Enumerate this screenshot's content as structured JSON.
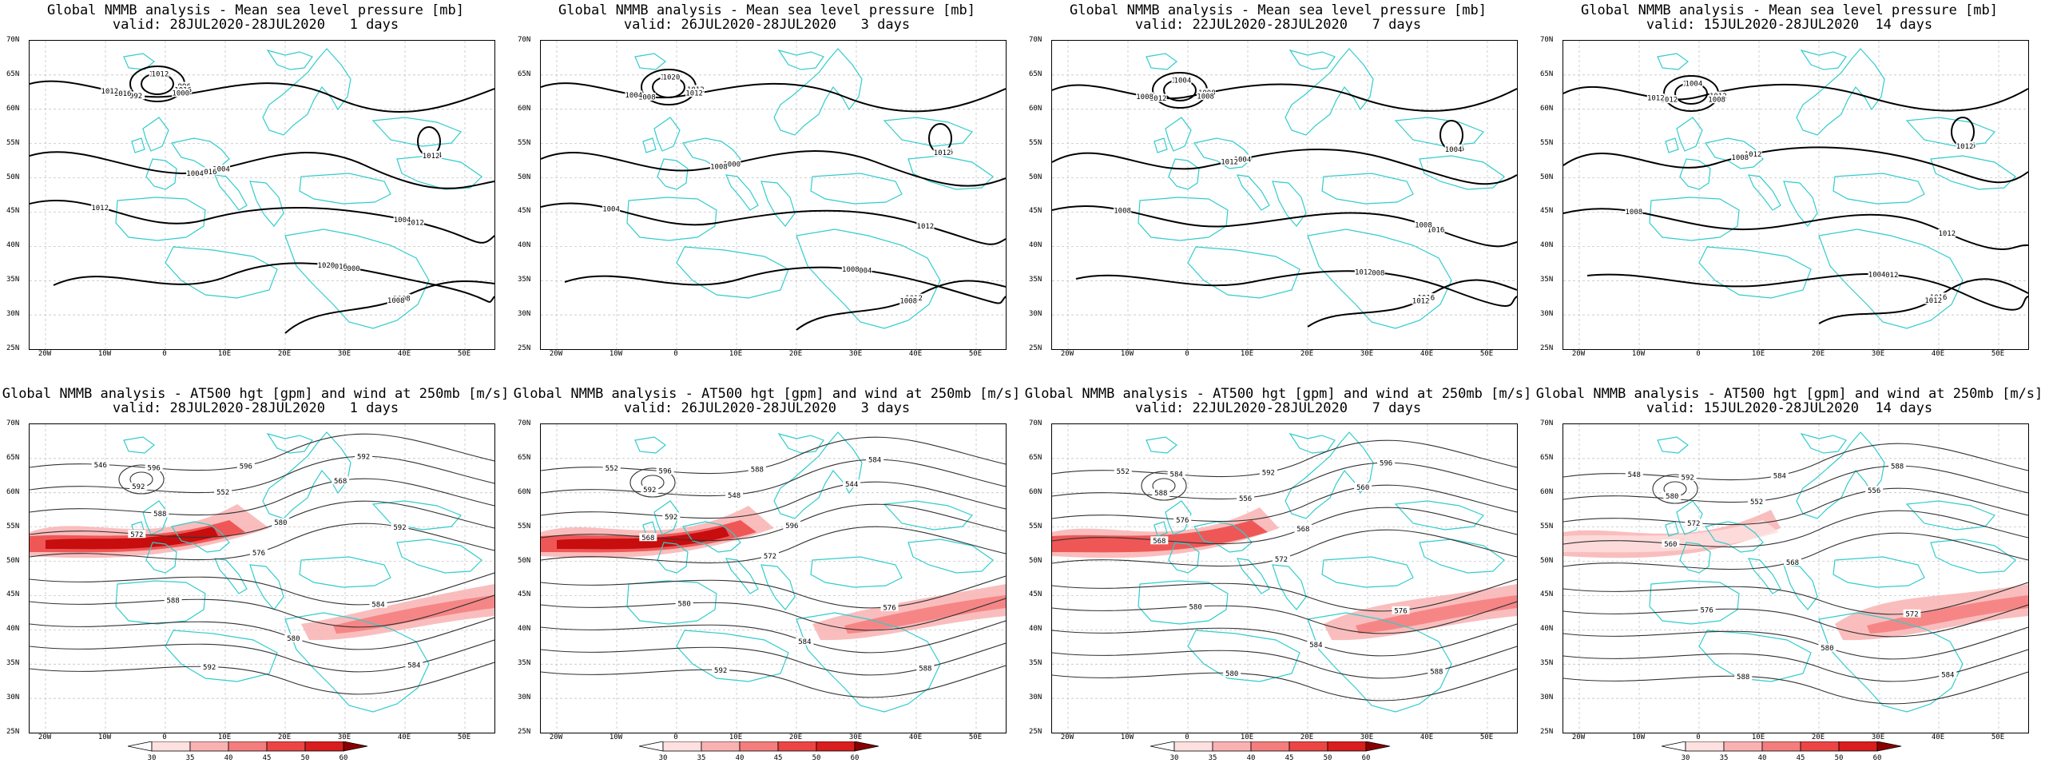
{
  "panels": [
    {
      "title": "Global NMMB analysis - Mean sea level pressure [mb]",
      "valid": "valid: 28JUL2020-28JUL2020   1 days",
      "kind": "mslp",
      "labels": [
        "1012",
        "1004",
        "1000",
        "992",
        "996",
        "1000",
        "1004",
        "1008",
        "1012",
        "1016",
        "1016",
        "1016",
        "1016",
        "1012",
        "1012",
        "1008",
        "1004",
        "1004",
        "1020",
        "1012",
        "1000"
      ]
    },
    {
      "title": "Global NMMB analysis - Mean sea level pressure [mb]",
      "valid": "valid: 26JUL2020-28JUL2020   3 days",
      "kind": "mslp",
      "labels": [
        "1004",
        "1000",
        "1004",
        "1008",
        "1012",
        "1016",
        "1016",
        "1012",
        "1012",
        "1008",
        "1008",
        "1004",
        "1012",
        "1020",
        "1012",
        "1008"
      ]
    },
    {
      "title": "Global NMMB analysis - Mean sea level pressure [mb]",
      "valid": "valid: 22JUL2020-28JUL2020   7 days",
      "kind": "mslp",
      "labels": [
        "1008",
        "1004",
        "1008",
        "1012",
        "1008",
        "1012",
        "1016",
        "1016",
        "1016",
        "1012",
        "1012",
        "1008",
        "1008",
        "1004",
        "1004",
        "1012",
        "1008"
      ]
    },
    {
      "title": "Global NMMB analysis - Mean sea level pressure [mb]",
      "valid": "valid: 15JUL2020-28JUL2020  14 days",
      "kind": "mslp",
      "labels": [
        "1008",
        "1012",
        "1012",
        "1012",
        "1012",
        "1016",
        "1016",
        "1016",
        "1012",
        "1008",
        "1004",
        "1012",
        "1008",
        "1004",
        "1012",
        "1012"
      ]
    },
    {
      "title": "Global NMMB analysis - AT500 hgt [gpm] and wind at 250mb [m/s]",
      "valid": "valid: 28JUL2020-28JUL2020   1 days",
      "kind": "z500",
      "labels": [
        "546",
        "552",
        "568",
        "572",
        "576",
        "584",
        "588",
        "580",
        "584",
        "592",
        "596",
        "592",
        "596",
        "592",
        "588",
        "580",
        "592"
      ]
    },
    {
      "title": "Global NMMB analysis - AT500 hgt [gpm] and wind at 250mb [m/s]",
      "valid": "valid: 26JUL2020-28JUL2020   3 days",
      "kind": "z500",
      "labels": [
        "552",
        "548",
        "544",
        "568",
        "572",
        "576",
        "580",
        "584",
        "588",
        "592",
        "596",
        "592",
        "588",
        "584",
        "592",
        "596"
      ]
    },
    {
      "title": "Global NMMB analysis - AT500 hgt [gpm] and wind at 250mb [m/s]",
      "valid": "valid: 22JUL2020-28JUL2020   7 days",
      "kind": "z500",
      "labels": [
        "552",
        "556",
        "560",
        "568",
        "572",
        "576",
        "580",
        "584",
        "588",
        "580",
        "584",
        "588",
        "592",
        "596",
        "576",
        "568"
      ]
    },
    {
      "title": "Global NMMB analysis - AT500 hgt [gpm] and wind at 250mb [m/s]",
      "valid": "valid: 15JUL2020-28JUL2020  14 days",
      "kind": "z500",
      "labels": [
        "548",
        "552",
        "556",
        "560",
        "568",
        "572",
        "576",
        "580",
        "584",
        "588",
        "592",
        "580",
        "584",
        "588",
        "572"
      ]
    }
  ],
  "lat_labels": [
    "70N",
    "65N",
    "60N",
    "55N",
    "50N",
    "45N",
    "40N",
    "35N",
    "30N",
    "25N"
  ],
  "lon_labels": [
    "20W",
    "10W",
    "0",
    "10E",
    "20E",
    "30E",
    "40E",
    "50E"
  ],
  "colorbar": {
    "ticks": [
      "30",
      "35",
      "40",
      "45",
      "50",
      "60"
    ],
    "colors": [
      "#ffffff",
      "#fde0e0",
      "#f9b2b2",
      "#f47d7d",
      "#ec4545",
      "#d81e1e",
      "#8a0000"
    ]
  },
  "colors": {
    "coast": "#33cccc",
    "contour": "#000000",
    "z500_contour": "#333333",
    "grid": "#bbbbbb"
  }
}
